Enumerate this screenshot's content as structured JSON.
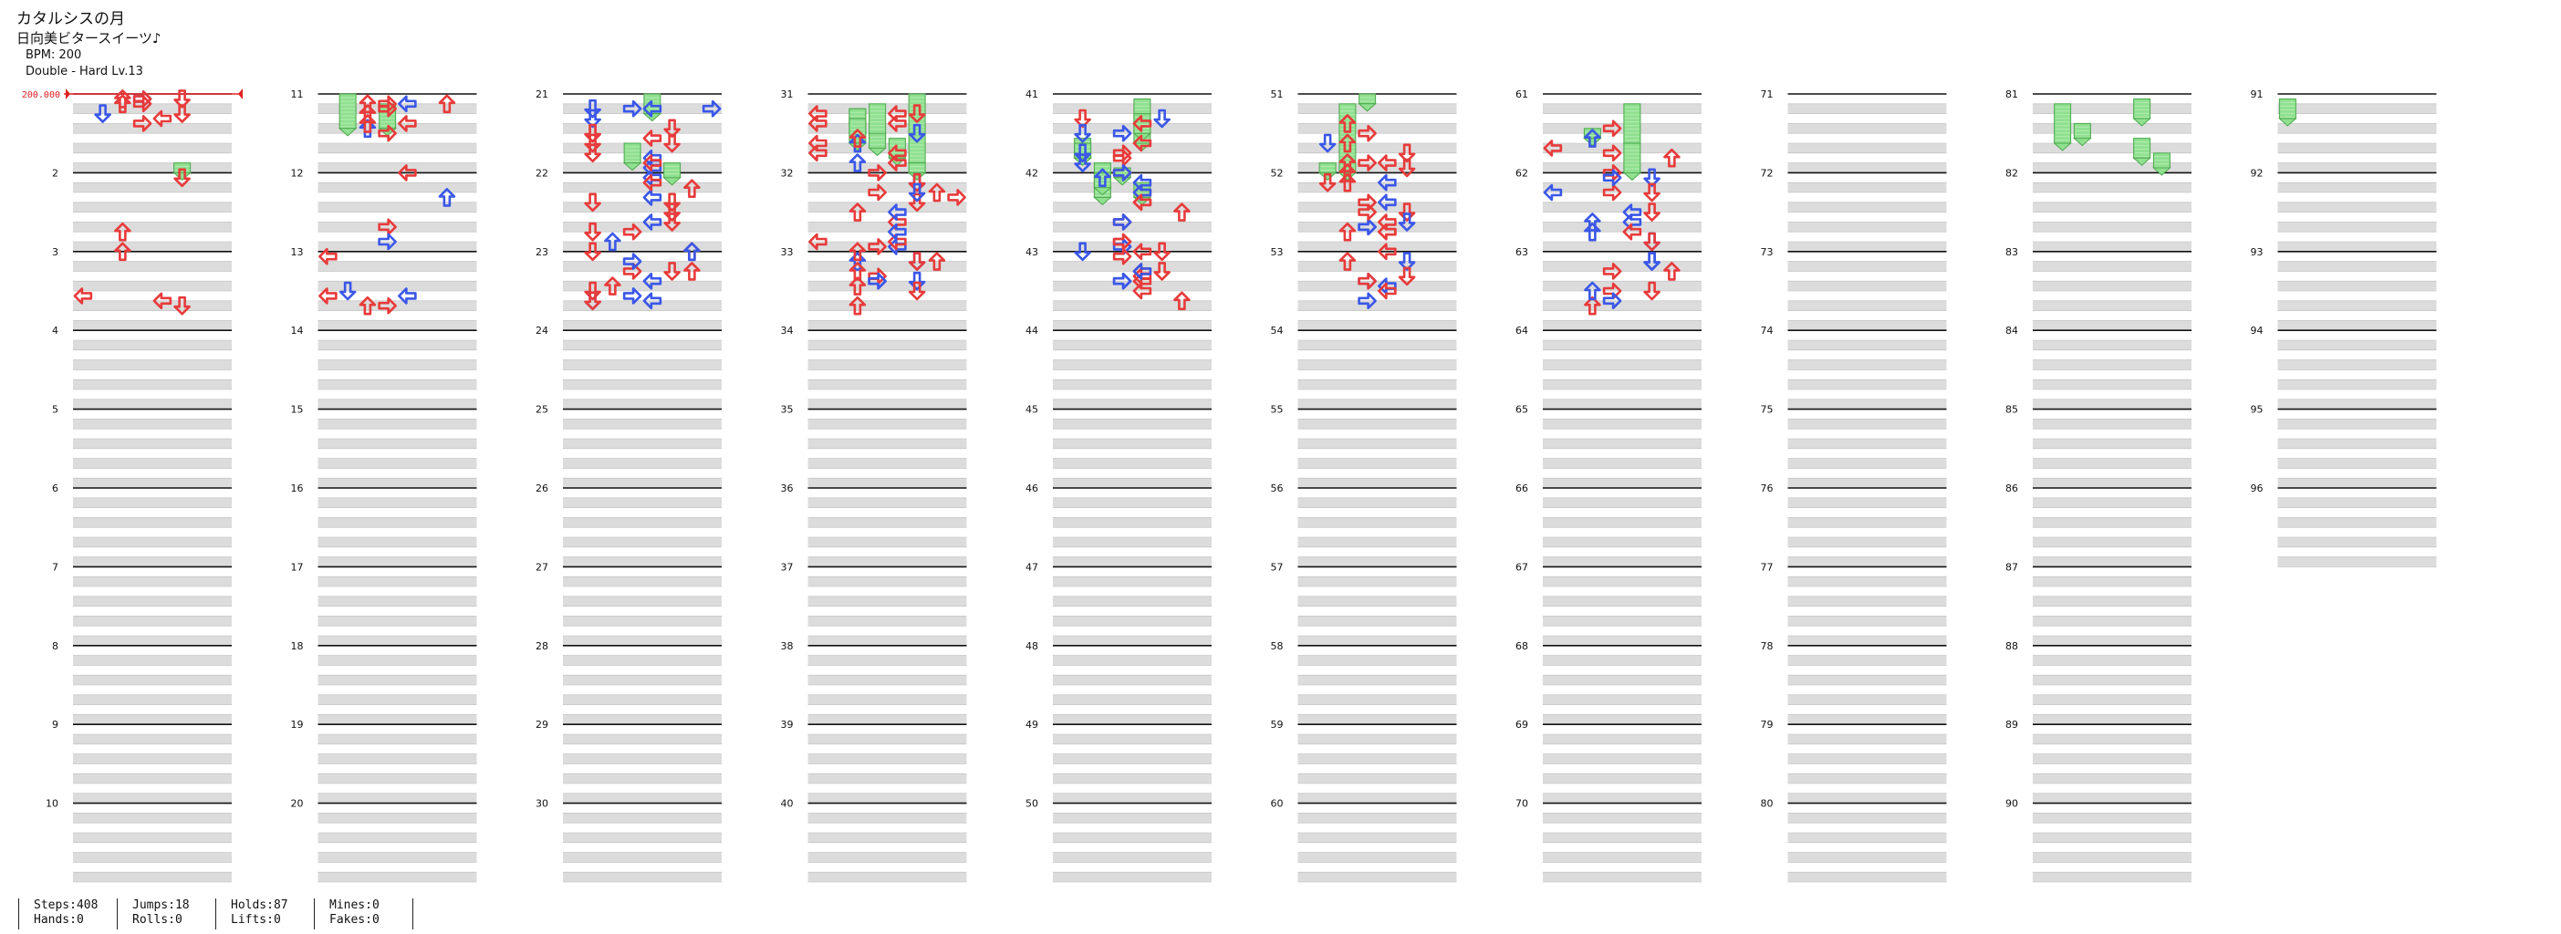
{
  "song": {
    "title": "カタルシスの月",
    "artist": "日向美ビタースイーツ♪",
    "bpm_label": "BPM: 200",
    "difficulty_label": "Double - Hard  Lv.13"
  },
  "bpm_marker": {
    "label": "200.000"
  },
  "stats": {
    "steps": "Steps:408",
    "hands": "Hands:0",
    "jumps": "Jumps:18",
    "rolls": "Rolls:0",
    "holds": "Holds:87",
    "lifts": "Lifts:0",
    "mines": "Mines:0",
    "fakes": "Fakes:0"
  },
  "chart_data": {
    "type": "step-chart",
    "measures_per_column": 10,
    "total_measures": 96,
    "lanes": 8,
    "colors": {
      "quarter": "#e83a3a",
      "eighth": "#3a57e8",
      "hold": "#8fe08f",
      "beat_band": "#dcdcdc",
      "measure_line": "#111111"
    },
    "notes": [
      [
        3,
        5.0,
        6,
        "r"
      ],
      [
        5,
        6.5,
        4,
        "r"
      ],
      [
        5,
        6.75,
        3,
        "b"
      ],
      [
        6,
        7.0,
        2,
        "b"
      ],
      [
        4,
        7.5,
        3,
        "r"
      ],
      [
        3,
        7.75,
        4,
        "b"
      ],
      [
        2,
        8.0,
        1,
        "r"
      ],
      [
        1,
        8.25,
        0,
        "r"
      ],
      [
        3,
        8.5,
        2,
        "b"
      ],
      [
        4,
        9.0,
        5,
        "r"
      ],
      [
        3,
        9.5,
        3,
        "b"
      ],
      [
        2,
        10.0,
        1,
        "r"
      ],
      [
        1,
        10.25,
        0,
        "r"
      ],
      [
        3,
        4.5,
        5,
        "r"
      ],
      [
        2,
        4.8,
        6,
        "r"
      ],
      [
        3,
        5.25,
        7,
        "r"
      ],
      [
        2,
        6.0,
        5,
        "r"
      ],
      [
        3,
        6.5,
        4,
        "r"
      ],
      [
        5,
        6.75,
        3,
        "b"
      ],
      [
        5,
        7.0,
        2,
        "r"
      ],
      [
        4,
        7.75,
        3,
        "b"
      ],
      [
        3,
        8.0,
        2,
        "r"
      ],
      [
        4,
        8.25,
        3,
        "r"
      ],
      [
        6,
        8.5,
        5,
        "b"
      ],
      [
        2,
        9.0,
        3,
        "r"
      ],
      [
        3,
        9.25,
        3,
        "r"
      ],
      [
        4,
        9.5,
        4,
        "r"
      ],
      [
        5,
        9.75,
        4,
        "b"
      ],
      [
        6,
        10.0,
        5,
        "r"
      ],
      [
        2,
        10.5,
        4,
        "b"
      ],
      [
        1,
        10.75,
        3,
        "r"
      ],
      [
        0,
        0.5,
        2,
        "r"
      ],
      [
        1,
        0.75,
        3,
        "r"
      ],
      [
        2,
        0.75,
        4,
        "b"
      ],
      [
        0,
        1.0,
        5,
        "r"
      ],
      [
        3,
        1.5,
        4,
        "r"
      ],
      [
        1,
        2.0,
        3,
        "r"
      ],
      [
        2,
        2.25,
        4,
        "r"
      ],
      [
        2,
        2.5,
        5,
        "r"
      ],
      [
        3,
        3.0,
        4,
        "r"
      ],
      [
        4,
        3.25,
        3,
        "r"
      ],
      [
        5,
        3.5,
        4,
        "r"
      ],
      [
        5,
        3.75,
        5,
        "r"
      ],
      [
        6,
        4.25,
        5,
        "b"
      ],
      [
        4,
        4.5,
        4,
        "b"
      ],
      [
        3,
        5.0,
        3,
        "r"
      ],
      [
        4,
        5.5,
        4,
        "r"
      ],
      [
        5,
        6.0,
        5,
        "r"
      ],
      [
        6,
        6.5,
        4,
        "b"
      ],
      [
        2,
        7.0,
        3,
        "r"
      ],
      [
        3,
        7.5,
        4,
        "r"
      ],
      [
        4,
        8.0,
        5,
        "r"
      ],
      [
        3,
        8.5,
        6,
        "r"
      ],
      [
        2,
        9.0,
        5,
        "r"
      ],
      [
        4,
        9.25,
        4,
        "r"
      ],
      [
        3,
        9.5,
        3,
        "b"
      ],
      [
        2,
        9.75,
        2,
        "r"
      ],
      [
        1,
        10.0,
        1,
        "b"
      ],
      [
        0,
        10.25,
        0,
        "r"
      ],
      [
        2,
        10.5,
        1,
        "b"
      ],
      [
        3,
        10.75,
        2,
        "r"
      ],
      [
        0,
        0.25,
        3,
        "b"
      ],
      [
        1,
        0.5,
        4,
        "b"
      ],
      [
        2,
        0.75,
        3,
        "b"
      ],
      [
        3,
        1.0,
        4,
        "r"
      ],
      [
        4,
        1.25,
        5,
        "b"
      ],
      [
        0,
        1.5,
        3,
        "r"
      ],
      [
        1,
        1.75,
        2,
        "b"
      ],
      [
        2,
        2.0,
        1,
        "r"
      ],
      [
        3,
        2.5,
        2,
        "b"
      ],
      [
        4,
        3.0,
        3,
        "r"
      ],
      [
        5,
        3.5,
        3,
        "r"
      ],
      [
        2,
        3.75,
        4,
        "b"
      ],
      [
        1,
        4.0,
        4,
        "r"
      ],
      [
        0,
        4.25,
        5,
        "r"
      ],
      [
        3,
        4.5,
        5,
        "b"
      ],
      [
        4,
        5.0,
        4,
        "r"
      ],
      [
        5,
        5.5,
        4,
        "b"
      ],
      [
        6,
        6.0,
        5,
        "r"
      ],
      [
        2,
        6.5,
        4,
        "b"
      ],
      [
        1,
        6.75,
        3,
        "r"
      ],
      [
        0,
        7.0,
        2,
        "r"
      ],
      [
        2,
        7.5,
        2,
        "b"
      ],
      [
        3,
        7.75,
        3,
        "r"
      ],
      [
        4,
        8.0,
        4,
        "r"
      ],
      [
        5,
        8.5,
        5,
        "b"
      ],
      [
        6,
        9.0,
        6,
        "r"
      ],
      [
        5,
        9.25,
        5,
        "r"
      ],
      [
        4,
        9.5,
        3,
        "b"
      ],
      [
        3,
        9.75,
        2,
        "r"
      ],
      [
        2,
        10.25,
        3,
        "b"
      ],
      [
        0,
        10.5,
        4,
        "r"
      ],
      [
        0,
        0.25,
        3,
        "r"
      ],
      [
        1,
        0.5,
        2,
        "r"
      ],
      [
        2,
        0.75,
        1,
        "b"
      ],
      [
        3,
        1.0,
        0,
        "r"
      ],
      [
        4,
        1.25,
        1,
        "r"
      ],
      [
        5,
        1.5,
        2,
        "r"
      ],
      [
        6,
        1.75,
        3,
        "r"
      ],
      [
        4,
        2.0,
        3,
        "b"
      ],
      [
        3,
        2.25,
        2,
        "r"
      ],
      [
        5,
        2.5,
        1,
        "b"
      ],
      [
        6,
        2.75,
        0,
        "r"
      ],
      [
        2,
        3.0,
        1,
        "r"
      ],
      [
        3,
        3.5,
        2,
        "b"
      ],
      [
        4,
        4.0,
        3,
        "r"
      ],
      [
        5,
        4.5,
        4,
        "b"
      ],
      [
        6,
        5.0,
        5,
        "r"
      ],
      [
        1,
        5.25,
        6,
        "b"
      ],
      [
        2,
        5.5,
        5,
        "r"
      ],
      [
        3,
        6.0,
        4,
        "b"
      ],
      [
        4,
        6.5,
        3,
        "r"
      ],
      [
        5,
        7.0,
        4,
        "r"
      ],
      [
        6,
        7.5,
        5,
        "b"
      ],
      [
        2,
        8.0,
        6,
        "r"
      ],
      [
        3,
        8.5,
        5,
        "b"
      ],
      [
        4,
        9.0,
        4,
        "r"
      ],
      [
        5,
        9.5,
        3,
        "b"
      ],
      [
        6,
        10.0,
        3,
        "r"
      ],
      [
        1,
        10.25,
        4,
        "b"
      ],
      [
        0,
        10.75,
        5,
        "r"
      ],
      [
        0,
        0.5,
        3,
        "r"
      ],
      [
        1,
        1.0,
        2,
        "r"
      ],
      [
        2,
        1.25,
        1,
        "b"
      ],
      [
        3,
        1.5,
        0,
        "r"
      ],
      [
        4,
        2.0,
        1,
        "b"
      ],
      [
        5,
        2.5,
        2,
        "r"
      ],
      [
        6,
        3.0,
        3,
        "r"
      ],
      [
        2,
        3.25,
        4,
        "b"
      ],
      [
        3,
        3.5,
        4,
        "r"
      ],
      [
        4,
        4.0,
        3,
        "b"
      ],
      [
        5,
        4.5,
        2,
        "r"
      ],
      [
        6,
        5.0,
        3,
        "r"
      ],
      [
        2,
        5.25,
        4,
        "b"
      ],
      [
        3,
        5.5,
        5,
        "r"
      ],
      [
        4,
        6.0,
        6,
        "r"
      ],
      [
        5,
        6.5,
        5,
        "b"
      ],
      [
        6,
        7.0,
        4,
        "r"
      ],
      [
        1,
        7.5,
        3,
        "b"
      ],
      [
        0,
        8.0,
        2,
        "r"
      ],
      [
        2,
        8.5,
        3,
        "b"
      ],
      [
        3,
        9.0,
        2,
        "r"
      ],
      [
        4,
        9.5,
        3,
        "b"
      ],
      [
        5,
        10.0,
        4,
        "r"
      ],
      [
        6,
        10.5,
        3,
        "b"
      ],
      [
        1,
        10.75,
        2,
        "r"
      ],
      [
        0,
        1.0,
        1,
        "b"
      ],
      [
        1,
        1.5,
        2,
        "r"
      ],
      [
        2,
        2.0,
        1,
        "r"
      ],
      [
        3,
        2.5,
        0,
        "r"
      ],
      [
        4,
        3.0,
        1,
        "b"
      ],
      [
        5,
        3.5,
        2,
        "r"
      ],
      [
        6,
        4.0,
        3,
        "r"
      ],
      [
        2,
        4.25,
        4,
        "b"
      ],
      [
        3,
        4.5,
        5,
        "r"
      ],
      [
        4,
        5.0,
        4,
        "b"
      ],
      [
        5,
        5.5,
        3,
        "r"
      ],
      [
        6,
        6.0,
        4,
        "b"
      ],
      [
        2,
        6.5,
        5,
        "r"
      ],
      [
        3,
        7.0,
        4,
        "b"
      ],
      [
        4,
        7.5,
        3,
        "r"
      ],
      [
        5,
        8.0,
        4,
        "r"
      ],
      [
        6,
        8.5,
        5,
        "b"
      ],
      [
        2,
        9.0,
        6,
        "r"
      ],
      [
        3,
        9.5,
        5,
        "b"
      ],
      [
        4,
        10.0,
        4,
        "r"
      ],
      [
        5,
        10.5,
        3,
        "b"
      ],
      [
        6,
        10.75,
        2,
        "r"
      ],
      [
        0,
        1.25,
        4,
        "r"
      ],
      [
        1,
        1.5,
        4,
        "r"
      ],
      [
        2,
        1.75,
        5,
        "r"
      ],
      [
        3,
        2.0,
        5,
        "b"
      ],
      [
        4,
        2.5,
        4,
        "r"
      ],
      [
        5,
        3.0,
        5,
        "r"
      ],
      [
        6,
        3.25,
        6,
        "r"
      ],
      [
        2,
        3.5,
        4,
        "r"
      ],
      [
        3,
        4.0,
        3,
        "r"
      ],
      [
        4,
        4.25,
        2,
        "b"
      ],
      [
        5,
        4.5,
        1,
        "r"
      ],
      [
        6,
        5.0,
        0,
        "b"
      ],
      [
        2,
        5.5,
        1,
        "r"
      ],
      [
        3,
        6.0,
        2,
        "r"
      ],
      [
        4,
        6.5,
        3,
        "b"
      ],
      [
        5,
        7.0,
        4,
        "r"
      ],
      [
        6,
        7.5,
        5,
        "r"
      ],
      [
        2,
        8.0,
        6,
        "b"
      ],
      [
        3,
        8.5,
        5,
        "r"
      ],
      [
        4,
        9.0,
        4,
        "b"
      ],
      [
        5,
        9.5,
        3,
        "r"
      ],
      [
        6,
        10.0,
        2,
        "b"
      ],
      [
        2,
        10.5,
        1,
        "r"
      ],
      [
        0,
        0.25,
        5,
        "r"
      ],
      [
        1,
        0.5,
        6,
        "r"
      ],
      [
        2,
        0.75,
        7,
        "b"
      ],
      [
        3,
        1.0,
        5,
        "r"
      ],
      [
        4,
        1.5,
        4,
        "r"
      ],
      [
        5,
        2.0,
        3,
        "r"
      ],
      [
        6,
        2.25,
        2,
        "b"
      ],
      [
        2,
        2.5,
        1,
        "r"
      ],
      [
        3,
        3.0,
        0,
        "r"
      ],
      [
        4,
        3.5,
        1,
        "b"
      ],
      [
        5,
        4.0,
        2,
        "r"
      ],
      [
        6,
        4.25,
        3,
        "b"
      ],
      [
        2,
        4.5,
        4,
        "r"
      ],
      [
        3,
        5.0,
        5,
        "b"
      ],
      [
        4,
        5.5,
        4,
        "r"
      ],
      [
        5,
        6.0,
        3,
        "r"
      ],
      [
        6,
        6.5,
        2,
        "b"
      ],
      [
        2,
        7.0,
        1,
        "r"
      ],
      [
        3,
        7.5,
        0,
        "r"
      ],
      [
        4,
        8.0,
        1,
        "b"
      ],
      [
        5,
        8.5,
        2,
        "r"
      ],
      [
        6,
        9.0,
        3,
        "r"
      ],
      [
        2,
        9.5,
        4,
        "b"
      ],
      [
        3,
        10.0,
        5,
        "r"
      ],
      [
        4,
        10.5,
        6,
        "r"
      ],
      [
        0,
        0.25,
        2,
        "r"
      ],
      [
        1,
        0.5,
        3,
        "r"
      ]
    ],
    "holds": [
      [
        1,
        0.0,
        1,
        5,
        1.75
      ],
      [
        1,
        0.5,
        3,
        3,
        1.25
      ],
      [
        2,
        0.0,
        4,
        3,
        1.0
      ],
      [
        3,
        0.0,
        5,
        0,
        3.5
      ],
      [
        3,
        0.5,
        3,
        6,
        1.75
      ],
      [
        5,
        0.5,
        2,
        5,
        3.5
      ],
      [
        6,
        0.5,
        4,
        6,
        2.0
      ],
      [
        6,
        2.5,
        4,
        3,
        1.5
      ],
      [
        8,
        0.5,
        1,
        0,
        2.0
      ],
      [
        9,
        0.25,
        0,
        2,
        1.0
      ],
      [
        2,
        2.5,
        3,
        3,
        1.0
      ],
      [
        2,
        3.5,
        5,
        4,
        0.75
      ],
      [
        3,
        0.75,
        2,
        2,
        0.75
      ],
      [
        5,
        0.0,
        3,
        2,
        0.5
      ],
      [
        5,
        3.5,
        1,
        1,
        0.5
      ],
      [
        6,
        1.75,
        2,
        3,
        0.5
      ],
      [
        3,
        0.75,
        2,
        2,
        1.25
      ],
      [
        3,
        1.25,
        2,
        3,
        1.25
      ],
      [
        3,
        2.0,
        3,
        1,
        0.75
      ],
      [
        3,
        2.25,
        4,
        4,
        1.0
      ],
      [
        3,
        3.5,
        5,
        2,
        0.5
      ],
      [
        8,
        1.5,
        2,
        3,
        0.75
      ],
      [
        8,
        0.25,
        5,
        3,
        1.0
      ],
      [
        8,
        2.25,
        5,
        2,
        1.0
      ],
      [
        8,
        3.0,
        6,
        2,
        0.75
      ],
      [
        0,
        3.5,
        5,
        2,
        0.5
      ],
      [
        4,
        3.75,
        3,
        1,
        0.5
      ],
      [
        4,
        2.25,
        1,
        5,
        1.0
      ],
      [
        4,
        2.5,
        1,
        0,
        0.75
      ],
      [
        4,
        3.5,
        2,
        4,
        1.75
      ],
      [
        4,
        4.0,
        2,
        3,
        0.75
      ],
      [
        4,
        0.25,
        4,
        5,
        2.25
      ],
      [
        4,
        4.5,
        4,
        6,
        0.75
      ],
      [
        4,
        1.0,
        4,
        0,
        1.0
      ]
    ]
  }
}
